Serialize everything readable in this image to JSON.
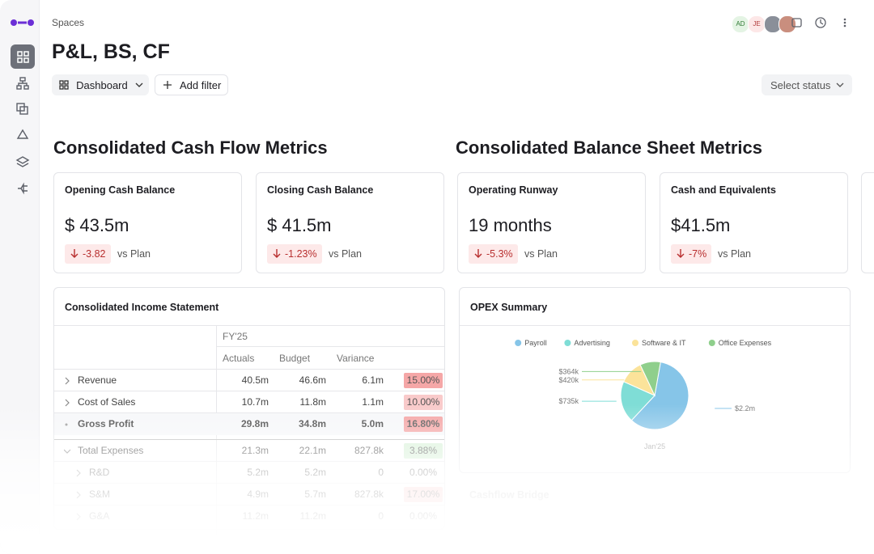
{
  "breadcrumb": "Spaces",
  "title": "P&L, BS, CF",
  "avatars": [
    "AD",
    "JE"
  ],
  "toolbar": {
    "view": "Dashboard",
    "filter": "Add filter",
    "status": "Select status"
  },
  "sections": [
    {
      "title": "Consolidated Cash Flow Metrics",
      "cards": [
        {
          "label": "Opening Cash Balance",
          "value": "$ 43.5m",
          "delta": "-3.82",
          "compare": "vs Plan"
        },
        {
          "label": "Closing Cash Balance",
          "value": "$ 41.5m",
          "delta": "-1.23%",
          "compare": "vs Plan"
        }
      ]
    },
    {
      "title": "Consolidated Balance Sheet Metrics",
      "cards": [
        {
          "label": "Operating Runway",
          "value": "19 months",
          "delta": "-5.3%",
          "compare": "vs Plan"
        },
        {
          "label": "Cash and Equivalents",
          "value": "$41.5m",
          "delta": "-7%",
          "compare": "vs Plan"
        }
      ]
    }
  ],
  "income_statement": {
    "title": "Consolidated Income Statement",
    "period": "FY'25",
    "columns": [
      "Actuals",
      "Budget",
      "Variance"
    ],
    "rows": [
      {
        "label": "Revenue",
        "actuals": "40.5m",
        "budget": "46.6m",
        "variance": "6.1m",
        "pct": "15.00%",
        "color": "#f5a7a7"
      },
      {
        "label": "Cost of Sales",
        "actuals": "10.7m",
        "budget": "11.8m",
        "variance": "1.1m",
        "pct": "10.00%",
        "color": "#f9caca"
      },
      {
        "label": "Gross Profit",
        "actuals": "29.8m",
        "budget": "34.8m",
        "variance": "5.0m",
        "pct": "16.80%",
        "color": "#f4a3a3"
      },
      {
        "label": "Total Expenses",
        "actuals": "21.3m",
        "budget": "22.1m",
        "variance": "827.8k",
        "pct": "3.88%",
        "color": "#d6f0d6",
        "children": [
          {
            "label": "R&D",
            "actuals": "5.2m",
            "budget": "5.2m",
            "variance": "0",
            "pct": "0.00%"
          },
          {
            "label": "S&M",
            "actuals": "4.9m",
            "budget": "5.7m",
            "variance": "827.8k",
            "pct": "17.00%",
            "color": "#f9caca"
          },
          {
            "label": "G&A",
            "actuals": "11.2m",
            "budget": "11.2m",
            "variance": "0",
            "pct": "0.00%"
          }
        ]
      }
    ]
  },
  "chart_data": {
    "type": "pie",
    "title": "OPEX Summary",
    "categories": [
      "Payroll",
      "Advertising",
      "Software & IT",
      "Office Expenses"
    ],
    "values": [
      2200000,
      735000,
      420000,
      364000
    ],
    "value_labels": [
      "$2.2m",
      "$735k",
      "$420k",
      "$364k"
    ],
    "colors": [
      "#86c5e8",
      "#7fddd6",
      "#fbe39a",
      "#8fcf8c"
    ],
    "caption": "Jan'25"
  },
  "next_panel": "Cashflow Bridge"
}
